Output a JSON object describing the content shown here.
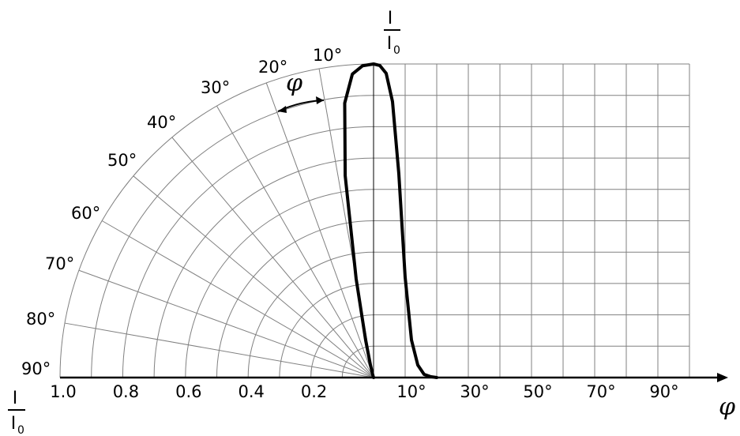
{
  "chart_data": {
    "type": "line",
    "subtype": "polar-and-cartesian light intensity distribution",
    "polar": {
      "angle_tick_labels": [
        "10°",
        "20°",
        "30°",
        "40°",
        "50°",
        "60°",
        "70°",
        "80°",
        "90°"
      ],
      "radius_tick_labels": [
        "1.0",
        "0.8",
        "0.6",
        "0.4",
        "0.2"
      ],
      "angle_arrow_label": "φ",
      "angle_grid_step_deg": 10,
      "radius_grid_step": 0.1
    },
    "cartesian": {
      "x_tick_labels": [
        "10°",
        "30°",
        "50°",
        "70°",
        "90°"
      ],
      "xlim": [
        0,
        100
      ],
      "ylim": [
        0,
        1.0
      ],
      "grid": true
    },
    "axis_labels": {
      "top_numerator": "I",
      "top_denominator": "I",
      "top_denominator_sub": "0",
      "left_numerator": "I",
      "left_denominator": "I",
      "left_denominator_sub": "0",
      "x_axis": "φ"
    },
    "series": [
      {
        "x": [
          0,
          2,
          4,
          6,
          8,
          10,
          12,
          14,
          16,
          18,
          20
        ],
        "y": [
          1.0,
          0.995,
          0.97,
          0.88,
          0.65,
          0.32,
          0.12,
          0.04,
          0.01,
          0.003,
          0.0
        ]
      }
    ],
    "colors": {
      "grid": "#808080",
      "curve": "#000000",
      "axis": "#000000"
    }
  }
}
